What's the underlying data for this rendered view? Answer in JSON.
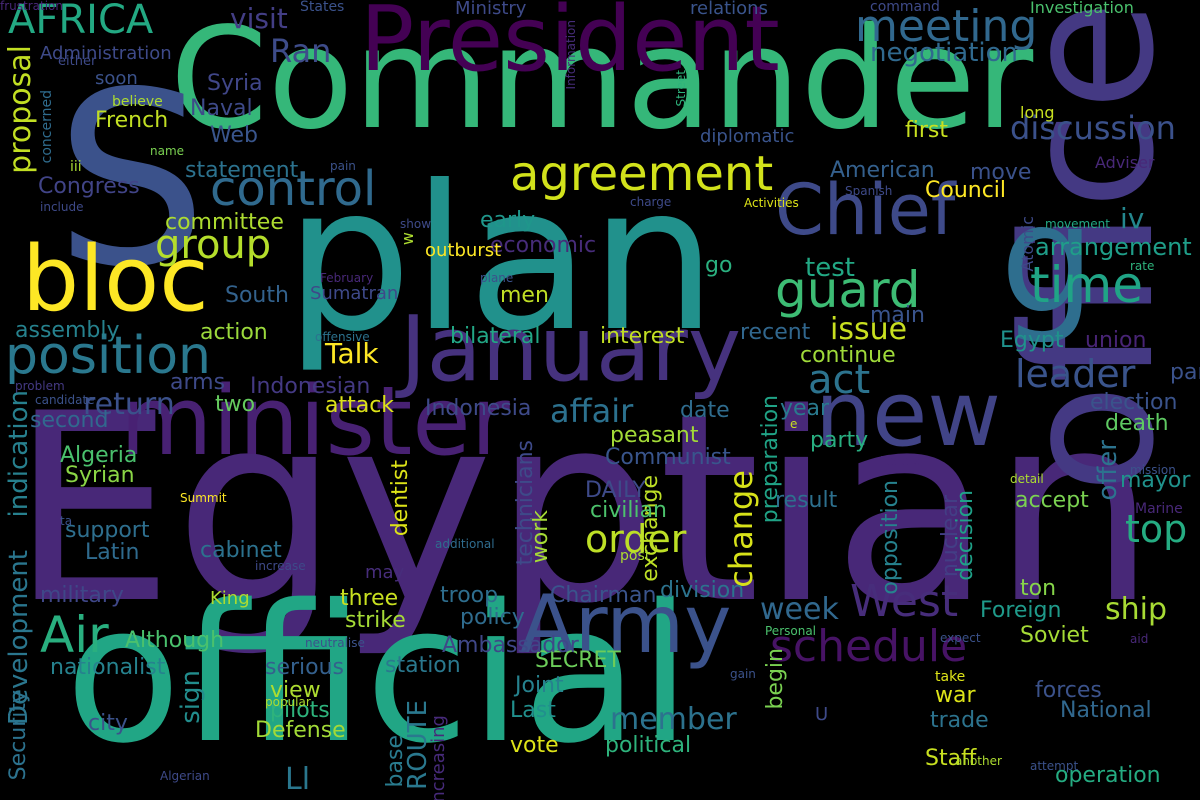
{
  "words": [
    {
      "text": "Egyptian",
      "color": "#482878"
    },
    {
      "text": "plan",
      "color": "#21918c"
    },
    {
      "text": "Commander",
      "color": "#35b779"
    },
    {
      "text": "official",
      "color": "#21a685"
    },
    {
      "text": "office",
      "color": "#443983"
    },
    {
      "text": "S",
      "color": "#3b528b"
    },
    {
      "text": "President",
      "color": "#440154"
    },
    {
      "text": "January",
      "color": "#46327e"
    },
    {
      "text": "minister",
      "color": "#482173"
    },
    {
      "text": "Chief",
      "color": "#3e4a89"
    },
    {
      "text": "g",
      "color": "#2e6e8e"
    },
    {
      "text": "Army",
      "color": "#3b528b"
    },
    {
      "text": "bloc",
      "color": "#fde725"
    },
    {
      "text": "new",
      "color": "#414487"
    },
    {
      "text": "agreement",
      "color": "#d2e21b"
    },
    {
      "text": "position",
      "color": "#2a788e"
    },
    {
      "text": "control",
      "color": "#306a8e"
    },
    {
      "text": "meeting",
      "color": "#31688e"
    },
    {
      "text": "guard",
      "color": "#3dbc74"
    },
    {
      "text": "time",
      "color": "#20a486"
    },
    {
      "text": "group",
      "color": "#b5de2b"
    },
    {
      "text": "AFRICA",
      "color": "#23a983"
    },
    {
      "text": "Ran",
      "color": "#3e4c8a"
    },
    {
      "text": "schedule",
      "color": "#471365"
    },
    {
      "text": "West",
      "color": "#472d7b"
    },
    {
      "text": "Air",
      "color": "#29af7f"
    },
    {
      "text": "act",
      "color": "#2c738e"
    },
    {
      "text": "leader",
      "color": "#3a548c"
    },
    {
      "text": "top",
      "color": "#25ac82"
    },
    {
      "text": "order",
      "color": "#bddf26"
    },
    {
      "text": "change",
      "color": "#d8e219"
    },
    {
      "text": "affair",
      "color": "#2c718e"
    },
    {
      "text": "discussion",
      "color": "#3b518b"
    },
    {
      "text": "negotiation",
      "color": "#30698e"
    },
    {
      "text": "visit",
      "color": "#433e85"
    },
    {
      "text": "proposal",
      "color": "#c2df23"
    },
    {
      "text": "Development",
      "color": "#2a768e"
    },
    {
      "text": "indication",
      "color": "#27808e"
    },
    {
      "text": "Talk",
      "color": "#fde725"
    },
    {
      "text": "issue",
      "color": "#c8e020"
    },
    {
      "text": "ship",
      "color": "#a8db34"
    },
    {
      "text": "member",
      "color": "#2c728e"
    },
    {
      "text": "week",
      "color": "#31688e"
    },
    {
      "text": "return",
      "color": "#3b518b"
    },
    {
      "text": "offer",
      "color": "#2c738e"
    },
    {
      "text": "iv",
      "color": "#24878e"
    },
    {
      "text": "arrangement",
      "color": "#1f9e89"
    },
    {
      "text": "test",
      "color": "#22a884"
    },
    {
      "text": "Ll",
      "color": "#2a778e"
    },
    {
      "text": "sign",
      "color": "#228d8d"
    },
    {
      "text": "ROUTE",
      "color": "#2a788e"
    },
    {
      "text": "Syria",
      "color": "#404688"
    },
    {
      "text": "Naval",
      "color": "#3e4a89"
    },
    {
      "text": "Web",
      "color": "#39558c"
    },
    {
      "text": "French",
      "color": "#c2df23"
    },
    {
      "text": "Congress",
      "color": "#414487"
    },
    {
      "text": "statement",
      "color": "#2c728e"
    },
    {
      "text": "American",
      "color": "#34608d"
    },
    {
      "text": "Council",
      "color": "#fde725"
    },
    {
      "text": "first",
      "color": "#c8e020"
    },
    {
      "text": "move",
      "color": "#3b528b"
    },
    {
      "text": "committee",
      "color": "#addc30"
    },
    {
      "text": "early",
      "color": "#1f968b"
    },
    {
      "text": "economic",
      "color": "#472c7a"
    },
    {
      "text": "exchange",
      "color": "#bddf26"
    },
    {
      "text": "go",
      "color": "#2ab07f"
    },
    {
      "text": "men",
      "color": "#c0df25"
    },
    {
      "text": "South",
      "color": "#33628d"
    },
    {
      "text": "action",
      "color": "#9bd93c"
    },
    {
      "text": "assembly",
      "color": "#26828e"
    },
    {
      "text": "Sumatran",
      "color": "#3e4989"
    },
    {
      "text": "bilateral",
      "color": "#22a785"
    },
    {
      "text": "interest",
      "color": "#c2df23"
    },
    {
      "text": "recent",
      "color": "#31678e"
    },
    {
      "text": "main",
      "color": "#3a548c"
    },
    {
      "text": "continue",
      "color": "#9fda3a"
    },
    {
      "text": "Egypt",
      "color": "#20928c"
    },
    {
      "text": "union",
      "color": "#482475"
    },
    {
      "text": "Indonesian",
      "color": "#443983"
    },
    {
      "text": "arms",
      "color": "#3e4a89"
    },
    {
      "text": "two",
      "color": "#65cb5e"
    },
    {
      "text": "attack",
      "color": "#dde318"
    },
    {
      "text": "Indonesia",
      "color": "#3e4a89"
    },
    {
      "text": "date",
      "color": "#2f6c8e"
    },
    {
      "text": "year",
      "color": "#297a8e"
    },
    {
      "text": "party",
      "color": "#28ae80"
    },
    {
      "text": "election",
      "color": "#3a538b"
    },
    {
      "text": "death",
      "color": "#5ec962"
    },
    {
      "text": "mayor",
      "color": "#20928c"
    },
    {
      "text": "accept",
      "color": "#7ad151"
    },
    {
      "text": "second",
      "color": "#31688e"
    },
    {
      "text": "Algeria",
      "color": "#4ac16d"
    },
    {
      "text": "Syrian",
      "color": "#8bd646"
    },
    {
      "text": "peasant",
      "color": "#a2da37"
    },
    {
      "text": "Communist",
      "color": "#39558c"
    },
    {
      "text": "DAILY",
      "color": "#3e4a89"
    },
    {
      "text": "civilian",
      "color": "#4cc26c"
    },
    {
      "text": "result",
      "color": "#2d708e"
    },
    {
      "text": "work",
      "color": "#a5db36"
    },
    {
      "text": "support",
      "color": "#2e6f8e"
    },
    {
      "text": "Latin",
      "color": "#2f6b8e"
    },
    {
      "text": "cabinet",
      "color": "#2c728e"
    },
    {
      "text": "military",
      "color": "#3f4788"
    },
    {
      "text": "Although",
      "color": "#4ac16d"
    },
    {
      "text": "nationalist",
      "color": "#26828e"
    },
    {
      "text": "serious",
      "color": "#34608d"
    },
    {
      "text": "Security",
      "color": "#2c728e"
    },
    {
      "text": "city",
      "color": "#3b528b"
    },
    {
      "text": "view",
      "color": "#addc30"
    },
    {
      "text": "pilots",
      "color": "#2eb37c"
    },
    {
      "text": "Defense",
      "color": "#a2da37"
    },
    {
      "text": "base",
      "color": "#297b8e"
    },
    {
      "text": "increasing",
      "color": "#472a7a"
    },
    {
      "text": "dentist",
      "color": "#dde318"
    },
    {
      "text": "technicians",
      "color": "#3e4a89"
    },
    {
      "text": "three",
      "color": "#c8e020"
    },
    {
      "text": "strike",
      "color": "#a5db36"
    },
    {
      "text": "troop",
      "color": "#2e6e8e"
    },
    {
      "text": "policy",
      "color": "#2f6c8e"
    },
    {
      "text": "Chairman",
      "color": "#3a548c"
    },
    {
      "text": "division",
      "color": "#2c738e"
    },
    {
      "text": "preparation",
      "color": "#20a386"
    },
    {
      "text": "begin",
      "color": "#7ad151"
    },
    {
      "text": "opposition",
      "color": "#26828e"
    },
    {
      "text": "nuclear",
      "color": "#433e85"
    },
    {
      "text": "decision",
      "color": "#1fa188"
    },
    {
      "text": "ton",
      "color": "#86d549"
    },
    {
      "text": "Foreign",
      "color": "#1f9a8a"
    },
    {
      "text": "Soviet",
      "color": "#a5db36"
    },
    {
      "text": "forces",
      "color": "#3b528b"
    },
    {
      "text": "National",
      "color": "#31688e"
    },
    {
      "text": "trade",
      "color": "#2c738e"
    },
    {
      "text": "Staff",
      "color": "#c8e020"
    },
    {
      "text": "operation",
      "color": "#25ac82"
    },
    {
      "text": "station",
      "color": "#2a788e"
    },
    {
      "text": "SECRET",
      "color": "#6ccd5a"
    },
    {
      "text": "Joint",
      "color": "#26828e"
    },
    {
      "text": "Last",
      "color": "#21908d"
    },
    {
      "text": "vote",
      "color": "#dde318"
    },
    {
      "text": "political",
      "color": "#2eb37c"
    },
    {
      "text": "Ambassador",
      "color": "#3f4788"
    },
    {
      "text": "war",
      "color": "#dde318"
    },
    {
      "text": "may",
      "color": "#472d7b"
    },
    {
      "text": "King",
      "color": "#addc30"
    },
    {
      "text": "U",
      "color": "#3e4a89"
    },
    {
      "text": "Ministry",
      "color": "#3e4a89"
    },
    {
      "text": "relations",
      "color": "#3a548c"
    },
    {
      "text": "command",
      "color": "#3e4a89"
    },
    {
      "text": "Investigation",
      "color": "#4ac16d"
    },
    {
      "text": "Administration",
      "color": "#3e4a89"
    },
    {
      "text": "soon",
      "color": "#3b528b"
    },
    {
      "text": "States",
      "color": "#3b528b"
    },
    {
      "text": "either",
      "color": "#3e4a89"
    },
    {
      "text": "concerned",
      "color": "#2f6c8e"
    },
    {
      "text": "believe",
      "color": "#addc30"
    },
    {
      "text": "iii",
      "color": "#a8db34"
    },
    {
      "text": "name",
      "color": "#7ad151"
    },
    {
      "text": "pain",
      "color": "#3b528b"
    },
    {
      "text": "include",
      "color": "#3e4a89"
    },
    {
      "text": "Information",
      "color": "#472d7b"
    },
    {
      "text": "Street",
      "color": "#2eb37c"
    },
    {
      "text": "diplomatic",
      "color": "#3a548c"
    },
    {
      "text": "long",
      "color": "#c8e020"
    },
    {
      "text": "Adviser",
      "color": "#482878"
    },
    {
      "text": "Spanish",
      "color": "#3e4a89"
    },
    {
      "text": "charge",
      "color": "#3e4a89"
    },
    {
      "text": "Activities",
      "color": "#dde318"
    },
    {
      "text": "show",
      "color": "#3e4a89"
    },
    {
      "text": "movement",
      "color": "#22a884"
    },
    {
      "text": "rate",
      "color": "#2eb37c"
    },
    {
      "text": "outburst",
      "color": "#fde725"
    },
    {
      "text": "w",
      "color": "#addc30"
    },
    {
      "text": "February",
      "color": "#482878"
    },
    {
      "text": "plane",
      "color": "#3b528b"
    },
    {
      "text": "Atomic",
      "color": "#3e4a89"
    },
    {
      "text": "offensive",
      "color": "#2c728e"
    },
    {
      "text": "problem",
      "color": "#443983"
    },
    {
      "text": "candidate",
      "color": "#3b528b"
    },
    {
      "text": "part",
      "color": "#3b528b"
    },
    {
      "text": "e",
      "color": "#c8e020"
    },
    {
      "text": "Federal",
      "color": "#482878"
    },
    {
      "text": "mission",
      "color": "#3b528b"
    },
    {
      "text": "detail",
      "color": "#addc30"
    },
    {
      "text": "Marine",
      "color": "#482878"
    },
    {
      "text": "Summit",
      "color": "#fde725"
    },
    {
      "text": "ta",
      "color": "#3b528b"
    },
    {
      "text": "additional",
      "color": "#2f6c8e"
    },
    {
      "text": "post",
      "color": "#addc30"
    },
    {
      "text": "increase",
      "color": "#3e4a89"
    },
    {
      "text": "expect",
      "color": "#3b528b"
    },
    {
      "text": "aid",
      "color": "#482878"
    },
    {
      "text": "Personal",
      "color": "#4ac16d"
    },
    {
      "text": "neutralise",
      "color": "#3b528b"
    },
    {
      "text": "gain",
      "color": "#3b528b"
    },
    {
      "text": "take",
      "color": "#dde318"
    },
    {
      "text": "popular",
      "color": "#addc30"
    },
    {
      "text": "another",
      "color": "#addc30"
    },
    {
      "text": "Algerian",
      "color": "#3e4a89"
    },
    {
      "text": "attempt",
      "color": "#3b528b"
    },
    {
      "text": "frustration",
      "color": "#482878"
    }
  ]
}
